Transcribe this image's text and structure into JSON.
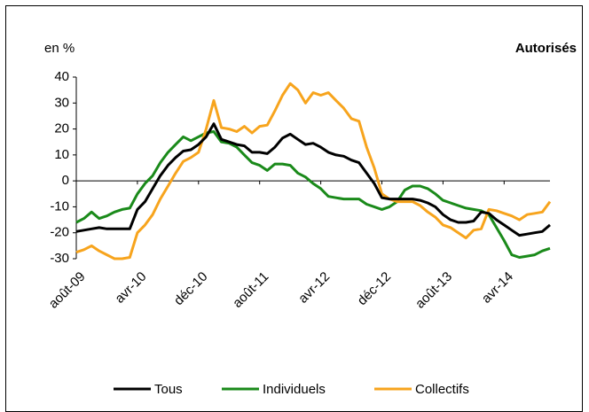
{
  "chart_data": {
    "type": "line",
    "title": "Autorisés",
    "ylabel": "en %",
    "categories": [
      "août-09",
      null,
      null,
      null,
      null,
      null,
      null,
      null,
      "avr-10",
      null,
      null,
      null,
      null,
      null,
      null,
      null,
      "déc-10",
      null,
      null,
      null,
      null,
      null,
      null,
      null,
      "août-11",
      null,
      null,
      null,
      null,
      null,
      null,
      null,
      "avr-12",
      null,
      null,
      null,
      null,
      null,
      null,
      null,
      "déc-12",
      null,
      null,
      null,
      null,
      null,
      null,
      null,
      "août-13",
      null,
      null,
      null,
      null,
      null,
      null,
      null,
      "avr-14",
      null,
      null,
      null,
      null,
      null,
      null
    ],
    "series": [
      {
        "name": "Tous",
        "color": "#000000",
        "values": [
          -19.5,
          -19,
          -18.5,
          -18,
          -18.5,
          -18.5,
          -18.5,
          -18.5,
          -11,
          -8,
          -3,
          2,
          6,
          9,
          11.5,
          12,
          14,
          17,
          22,
          16,
          15,
          14,
          13.5,
          11,
          11,
          10.5,
          13,
          16.5,
          18,
          16,
          14,
          14.5,
          13,
          11,
          10,
          9.5,
          8,
          7,
          3,
          -1,
          -6.5,
          -7,
          -7,
          -7,
          -7,
          -7.5,
          -8.5,
          -10,
          -13,
          -15,
          -16,
          -16,
          -15.5,
          -12,
          -12.5,
          -15,
          -17,
          -19,
          -21,
          -20.5,
          -20,
          -19.5,
          -17
        ]
      },
      {
        "name": "Individuels",
        "color": "#1a8a1a",
        "values": [
          -16,
          -14.5,
          -12,
          -14.5,
          -13.5,
          -12,
          -11,
          -10.5,
          -5,
          -1,
          2,
          7,
          11,
          14,
          17,
          15.5,
          17,
          18.5,
          19,
          15,
          14.5,
          13,
          10,
          7,
          6,
          4,
          6.5,
          6.5,
          6,
          3,
          1.5,
          -1,
          -3,
          -6,
          -6.5,
          -7,
          -7,
          -7,
          -9,
          -10,
          -11,
          -10,
          -8,
          -3.5,
          -2,
          -2,
          -3,
          -5,
          -7.5,
          -8.5,
          -9.5,
          -10.5,
          -11,
          -11.5,
          -13,
          -18,
          -23,
          -28.5,
          -29.5,
          -29,
          -28.5,
          -27,
          -26
        ]
      },
      {
        "name": "Collectifs",
        "color": "#f7a41d",
        "values": [
          -27.5,
          -26.5,
          -25,
          -27,
          -28.5,
          -30,
          -30,
          -29.5,
          -20,
          -17,
          -13,
          -7,
          -2,
          3,
          7.5,
          9,
          11,
          20,
          31,
          20.5,
          20,
          19,
          21,
          18.5,
          21,
          21.5,
          27,
          33,
          37.5,
          35,
          30,
          34,
          33,
          34,
          31,
          28,
          24,
          23,
          13,
          5,
          -5,
          -7,
          -8,
          -8,
          -8,
          -9.5,
          -12,
          -14,
          -17,
          -18,
          -20,
          -22,
          -19,
          -18.5,
          -11,
          -11.5,
          -12.5,
          -13.5,
          -15,
          -13,
          -12.5,
          -12,
          -8
        ]
      }
    ],
    "ylim": [
      -30,
      40
    ],
    "yticks": [
      40,
      30,
      20,
      10,
      0,
      -10,
      -20,
      -30
    ]
  }
}
